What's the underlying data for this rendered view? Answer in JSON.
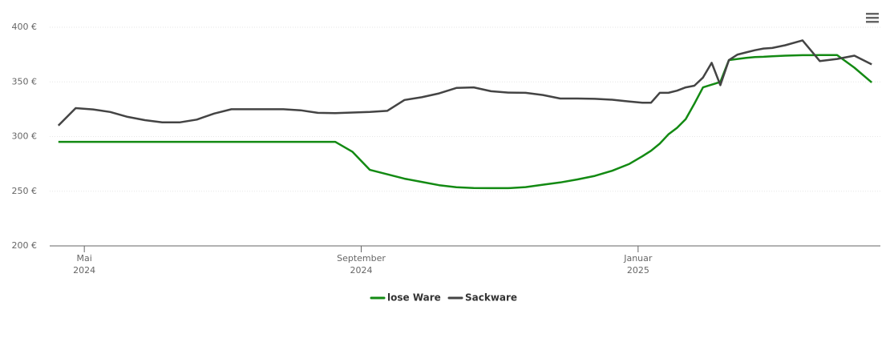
{
  "chart_data": {
    "type": "line",
    "x": [
      "2024-04",
      "2024-04",
      "2024-05",
      "2024-05",
      "2024-05",
      "2024-05",
      "2024-06",
      "2024-06",
      "2024-06",
      "2024-06",
      "2024-07",
      "2024-07",
      "2024-07",
      "2024-07",
      "2024-08",
      "2024-08",
      "2024-08",
      "2024-08",
      "2024-09",
      "2024-09",
      "2024-09",
      "2024-09",
      "2024-10",
      "2024-10",
      "2024-10",
      "2024-10",
      "2024-11",
      "2024-11",
      "2024-11",
      "2024-11",
      "2024-12",
      "2024-12",
      "2024-12",
      "2024-12",
      "2025-01",
      "2025-01",
      "2025-01",
      "2025-01",
      "2025-01",
      "2025-01",
      "2025-01",
      "2025-01",
      "2025-02",
      "2025-02",
      "2025-02",
      "2025-02",
      "2025-02",
      "2025-02",
      "2025-02",
      "2025-02",
      "2025-03",
      "2025-03",
      "2025-03",
      "2025-03",
      "2025-04",
      "2025-04"
    ],
    "series": [
      {
        "name": "lose Ware",
        "color": "#138a13",
        "values": [
          295.2,
          295.2,
          295.2,
          295.2,
          295.2,
          295.2,
          295.2,
          295.2,
          295.2,
          295.2,
          295.2,
          295.2,
          295.2,
          295.2,
          295.2,
          295.2,
          295.2,
          286,
          269.5,
          265.5,
          261.5,
          258.5,
          255.5,
          253.7,
          253,
          252.8,
          252.8,
          253.8,
          256,
          258,
          260.8,
          264,
          268.7,
          275,
          282,
          287,
          293.5,
          302,
          308,
          316,
          330,
          345,
          347.5,
          350,
          370,
          371,
          372,
          372.7,
          373,
          373.5,
          374,
          374.4,
          374.5,
          374.5,
          363,
          349.5
        ]
      },
      {
        "name": "Sackware",
        "color": "#444444",
        "values": [
          310,
          326,
          324.8,
          322.5,
          318,
          315,
          313,
          313,
          315.5,
          321,
          325,
          325,
          325,
          325,
          324,
          321.7,
          321.5,
          322,
          322.5,
          323.5,
          333.5,
          336,
          339.5,
          344.5,
          345,
          341.5,
          340.2,
          340,
          338,
          334.8,
          334.8,
          334.5,
          333.7,
          332,
          331,
          331,
          340,
          340,
          342,
          345,
          346.5,
          354,
          367.5,
          347,
          370,
          375,
          377,
          379,
          380.5,
          381,
          383.5,
          388,
          369,
          371,
          374,
          366
        ]
      }
    ],
    "xlim": [
      "2024-04",
      "2025-04"
    ],
    "xticks": [
      {
        "value": "2024-05",
        "label": "Mai 2024"
      },
      {
        "value": "2024-09",
        "label": "September 2024"
      },
      {
        "value": "2025-01",
        "label": "Januar 2025"
      }
    ],
    "ylim": [
      200,
      400
    ],
    "yticks": [
      {
        "value": 200,
        "label": "200 €"
      },
      {
        "value": 250,
        "label": "250 €"
      },
      {
        "value": 300,
        "label": "300 €"
      },
      {
        "value": 350,
        "label": "350 €"
      },
      {
        "value": 400,
        "label": "400 €"
      }
    ],
    "grid": true
  }
}
